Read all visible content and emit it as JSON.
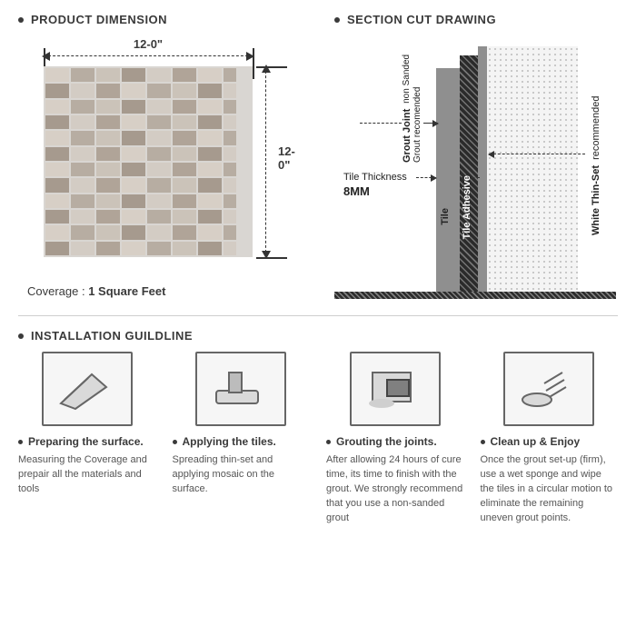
{
  "headings": {
    "dimension": "PRODUCT DIMENSION",
    "section": "SECTION CUT DRAWING",
    "install": "INSTALLATION GUILDLINE"
  },
  "dimension": {
    "width_label": "12-0\"",
    "height_label": "12-0\"",
    "coverage_label": "Coverage :",
    "coverage_value": "1 Square Feet",
    "tile_colors": [
      "#d7cfc6",
      "#b7ada2",
      "#cbc3b9",
      "#a69a8e",
      "#d3ccc4",
      "#b0a498"
    ],
    "tile_rows": 12,
    "tile_strip_widths": [
      26,
      26,
      26,
      26,
      26,
      26,
      26,
      14
    ]
  },
  "section": {
    "grout_label": "Grout Joint",
    "grout_sub": "non Sanded Grout recomended",
    "thickness_label": "Tile Thickness",
    "thickness_value": "8MM",
    "tile_label": "Tile",
    "adhesive_label": "Tile Adhesive",
    "thinset_label": "White Thin-Set",
    "thinset_sub": "recommended",
    "colors": {
      "tile_layer": "#8f8f8f",
      "dark": "#2b2b2b",
      "thinset_bg": "#f4f4f4",
      "thinset_dot": "#c9c9c9"
    }
  },
  "steps": [
    {
      "title": "Preparing the surface.",
      "desc": "Measuring the Coverage and prepair all the materials and tools"
    },
    {
      "title": "Applying the tiles.",
      "desc": "Spreading thin-set and applying mosaic on the surface."
    },
    {
      "title": "Grouting the joints.",
      "desc": "After allowing 24 hours of cure time, its time to finish with the grout. We strongly recommend that you use a non-sanded grout"
    },
    {
      "title": "Clean up & Enjoy",
      "desc": "Once the grout set-up (firm), use a wet sponge and wipe the tiles in a circular motion to eliminate the remaining uneven grout points."
    }
  ]
}
